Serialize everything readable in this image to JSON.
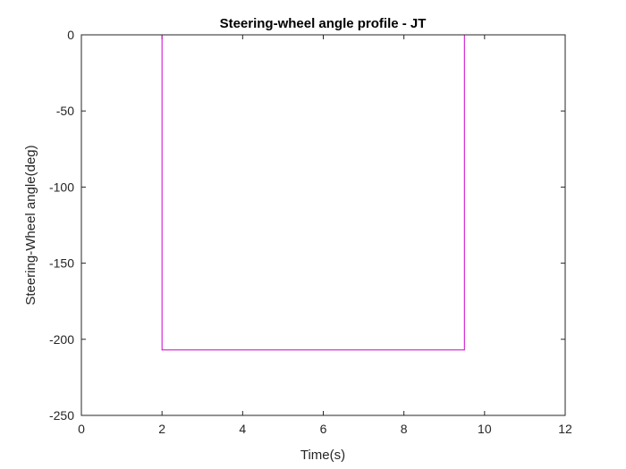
{
  "chart_data": {
    "type": "line",
    "title": "Steering-wheel angle profile - JT",
    "xlabel": "Time(s)",
    "ylabel": "Steering-Wheel angle(deg)",
    "xlim": [
      0,
      12
    ],
    "ylim": [
      -250,
      0
    ],
    "xticks": [
      0,
      2,
      4,
      6,
      8,
      10,
      12
    ],
    "yticks": [
      0,
      -50,
      -100,
      -150,
      -200,
      -250
    ],
    "grid": false,
    "legend": "none",
    "series": [
      {
        "color": "#cc00cc",
        "x": [
          0,
          2,
          2,
          9.5,
          9.5,
          10.5
        ],
        "y": [
          0,
          0,
          -207,
          -207,
          0,
          0
        ]
      }
    ]
  }
}
